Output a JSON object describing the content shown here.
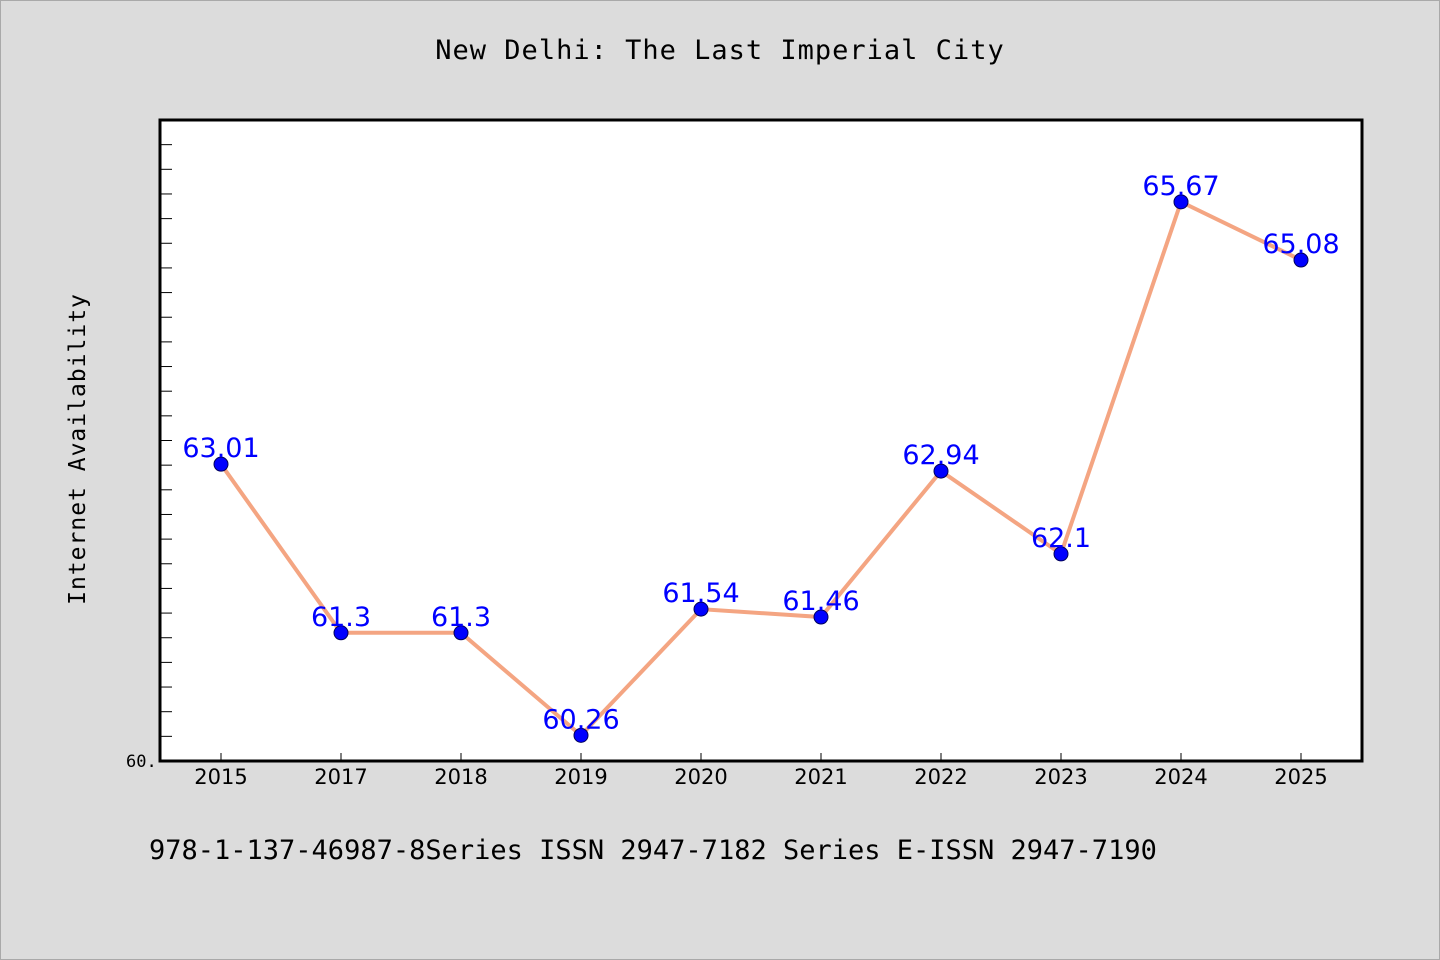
{
  "chart_data": {
    "type": "line",
    "title": "New Delhi: The Last Imperial City",
    "ylabel": "Internet Availability",
    "xlabel": "",
    "categories": [
      "2015",
      "2017",
      "2018",
      "2019",
      "2020",
      "2021",
      "2022",
      "2023",
      "2024",
      "2025"
    ],
    "series": [
      {
        "values": [
          63.01,
          61.3,
          61.3,
          60.26,
          61.54,
          61.46,
          62.94,
          62.1,
          65.67,
          65.08
        ],
        "data_labels": [
          "63.01",
          "61.3",
          "61.3",
          "60.26",
          "61.54",
          "61.46",
          "62.94",
          "62.1",
          "65.67",
          "65.08"
        ]
      }
    ],
    "ylim": [
      60.0,
      66.5
    ],
    "y_tick_label": "60.",
    "grid": false,
    "line_color": "#f4a582",
    "marker_color": "#0000ff",
    "label_color": "#0000ff"
  },
  "footer": {
    "text": "978-1-137-46987-8Series ISSN 2947-7182 Series E-ISSN 2947-7190"
  }
}
